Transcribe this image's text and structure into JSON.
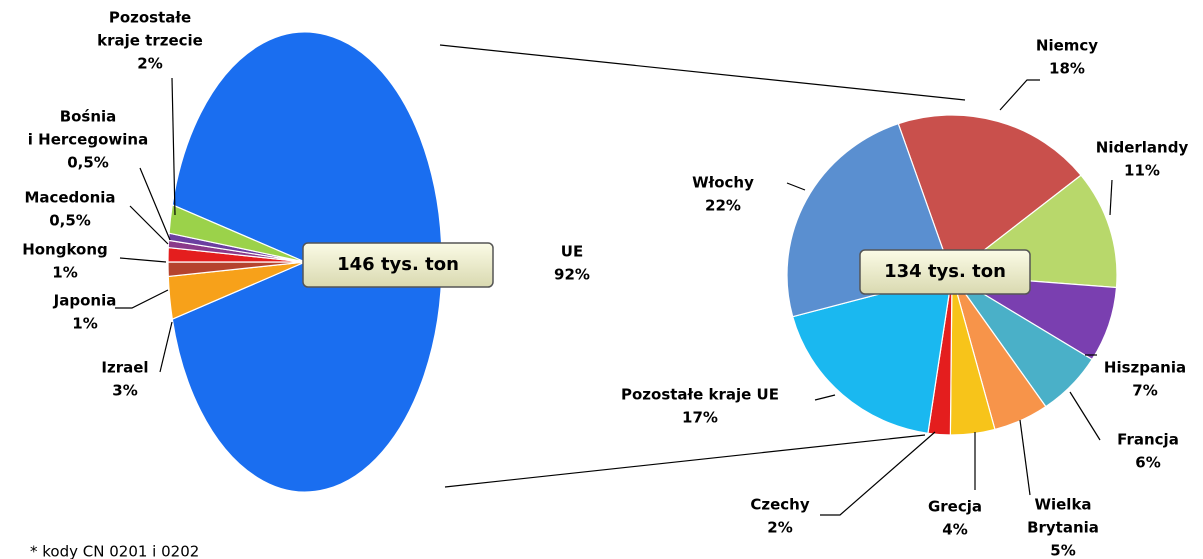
{
  "chart_data": [
    {
      "type": "pie",
      "center_label": "146 tys. ton",
      "categories": [
        [
          "UE"
        ],
        [
          "Izrael"
        ],
        [
          "Japonia"
        ],
        [
          "Hongkong"
        ],
        [
          "Macedonia"
        ],
        [
          "Bośnia",
          "i Hercegowina"
        ],
        [
          "Pozostałe",
          "kraje trzecie"
        ]
      ],
      "values": [
        92,
        3,
        1,
        1,
        0.5,
        0.5,
        2
      ],
      "value_labels": [
        "92%",
        "3%",
        "1%",
        "1%",
        "0,5%",
        "0,5%",
        "2%"
      ],
      "colors": [
        "#1a6ef0",
        "#f7a11a",
        "#b5432e",
        "#e41e1e",
        "#8a3a8a",
        "#6b3fa0",
        "#9bd24a"
      ]
    },
    {
      "type": "pie",
      "center_label": "134 tys. ton",
      "categories": [
        [
          "Niemcy"
        ],
        [
          "Niderlandy"
        ],
        [
          "Hiszpania"
        ],
        [
          "Francja"
        ],
        [
          "Wielka",
          "Brytania"
        ],
        [
          "Grecja"
        ],
        [
          "Czechy"
        ],
        [
          "Pozostałe kraje UE"
        ],
        [
          "Włochy"
        ]
      ],
      "values": [
        18,
        11,
        7,
        6,
        5,
        4,
        2,
        17,
        22
      ],
      "value_labels": [
        "18%",
        "11%",
        "7%",
        "6%",
        "5%",
        "4%",
        "2%",
        "17%",
        "22%"
      ],
      "colors": [
        "#c9504c",
        "#b8d86b",
        "#7a3fb0",
        "#4ab0c8",
        "#f7944a",
        "#f7c41a",
        "#e41e1e",
        "#1ab8f0",
        "#5a8fd0"
      ]
    }
  ],
  "footnote": "* kody CN 0201 i 0202"
}
